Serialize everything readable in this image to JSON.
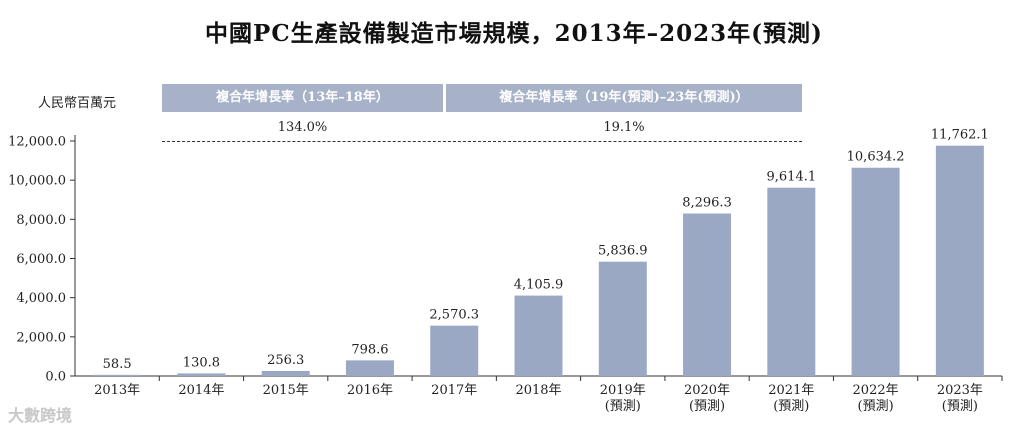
{
  "chart_data": {
    "type": "bar",
    "title": "中國PC生產設備製造市場規模，2013年–2023年(預測)",
    "ylabel": "人民幣百萬元",
    "xlabel": "",
    "ylim": [
      0,
      12000
    ],
    "yticks": [
      "0.0",
      "2,000.0",
      "4,000.0",
      "6,000.0",
      "8,000.0",
      "10,000.0",
      "12,000.0"
    ],
    "ytick_values": [
      0,
      2000,
      4000,
      6000,
      8000,
      10000,
      12000
    ],
    "categories": [
      [
        "2013年"
      ],
      [
        "2014年"
      ],
      [
        "2015年"
      ],
      [
        "2016年"
      ],
      [
        "2017年"
      ],
      [
        "2018年"
      ],
      [
        "2019年",
        "(預測)"
      ],
      [
        "2020年",
        "(預測)"
      ],
      [
        "2021年",
        "(預測)"
      ],
      [
        "2022年",
        "(預測)"
      ],
      [
        "2023年",
        "(預測)"
      ]
    ],
    "values": [
      58.5,
      130.8,
      256.3,
      798.6,
      2570.3,
      4105.9,
      5836.9,
      8296.3,
      9614.1,
      10634.2,
      11762.1
    ],
    "value_labels": [
      "58.5",
      "130.8",
      "256.3",
      "798.6",
      "2,570.3",
      "4,105.9",
      "5,836.9",
      "8,296.3",
      "9,614.1",
      "10,634.2",
      "11,762.1"
    ],
    "bar_color": "#9aa8c4",
    "cagr": [
      {
        "label": "複合年增長率（13年–18年）",
        "value": "134.0%"
      },
      {
        "label": "複合年增長率（19年(預測)–23年(預測)）",
        "value": "19.1%"
      }
    ]
  },
  "watermark": "大數跨境"
}
